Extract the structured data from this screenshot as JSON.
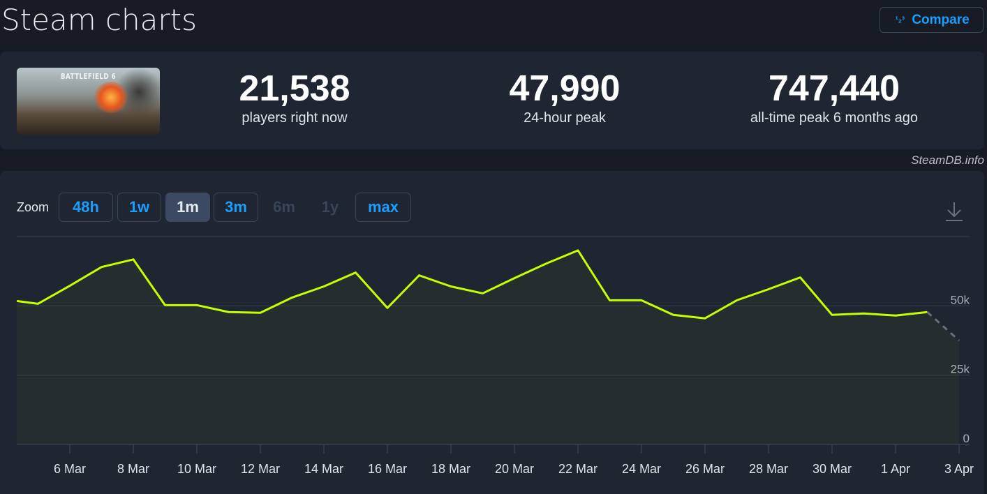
{
  "header": {
    "title": "Steam charts",
    "compare_label": "Compare",
    "compare_icon": "numbers-123-icon"
  },
  "game": {
    "capsule_text": "BATTLEFIELD 6"
  },
  "stats": [
    {
      "value": "21,538",
      "label": "players right now"
    },
    {
      "value": "47,990",
      "label": "24-hour peak"
    },
    {
      "value": "747,440",
      "label": "all-time peak 6 months ago"
    }
  ],
  "credit": "SteamDB.info",
  "zoom": {
    "label": "Zoom",
    "buttons": [
      {
        "label": "48h",
        "state": "enabled"
      },
      {
        "label": "1w",
        "state": "enabled"
      },
      {
        "label": "1m",
        "state": "active"
      },
      {
        "label": "3m",
        "state": "enabled"
      },
      {
        "label": "6m",
        "state": "disabled"
      },
      {
        "label": "1y",
        "state": "disabled"
      },
      {
        "label": "max",
        "state": "enabled"
      }
    ]
  },
  "colors": {
    "line": "#c6ff00",
    "projection": "#6b6e73",
    "accent": "#1a9fff"
  },
  "chart_data": {
    "type": "line",
    "ylim": [
      0,
      75000
    ],
    "yticks": [
      {
        "value": 0,
        "label": "0"
      },
      {
        "value": 25000,
        "label": "25k"
      },
      {
        "value": 50000,
        "label": "50k"
      },
      {
        "value": 75000,
        "label": ""
      }
    ],
    "xticks": [
      "6 Mar",
      "8 Mar",
      "10 Mar",
      "12 Mar",
      "14 Mar",
      "16 Mar",
      "18 Mar",
      "20 Mar",
      "22 Mar",
      "24 Mar",
      "26 Mar",
      "28 Mar",
      "30 Mar",
      "1 Apr",
      "3 Apr"
    ],
    "grid": true,
    "series": [
      {
        "points": [
          [
            "4 Mar 08:00",
            51750
          ],
          [
            "5 Mar",
            50750
          ],
          [
            "6 Mar",
            57250
          ],
          [
            "7 Mar",
            64000
          ],
          [
            "8 Mar",
            66750
          ],
          [
            "9 Mar",
            50250
          ],
          [
            "10 Mar",
            50250
          ],
          [
            "11 Mar",
            47750
          ],
          [
            "12 Mar",
            47500
          ],
          [
            "13 Mar",
            53000
          ],
          [
            "14 Mar",
            57000
          ],
          [
            "15 Mar",
            62000
          ],
          [
            "16 Mar",
            49250
          ],
          [
            "17 Mar",
            61000
          ],
          [
            "18 Mar",
            57000
          ],
          [
            "19 Mar",
            54500
          ],
          [
            "20 Mar",
            60000
          ],
          [
            "21 Mar",
            65250
          ],
          [
            "22 Mar",
            70000
          ],
          [
            "23 Mar",
            52000
          ],
          [
            "24 Mar",
            52000
          ],
          [
            "25 Mar",
            46750
          ],
          [
            "26 Mar",
            45500
          ],
          [
            "27 Mar",
            52000
          ],
          [
            "28 Mar",
            56000
          ],
          [
            "29 Mar",
            60250
          ],
          [
            "30 Mar",
            46750
          ],
          [
            "31 Mar",
            47250
          ],
          [
            "1 Apr",
            46500
          ],
          [
            "2 Apr",
            47750
          ]
        ],
        "projection": [
          [
            "2 Apr",
            47750
          ],
          [
            "3 Apr",
            37500
          ]
        ]
      }
    ]
  }
}
